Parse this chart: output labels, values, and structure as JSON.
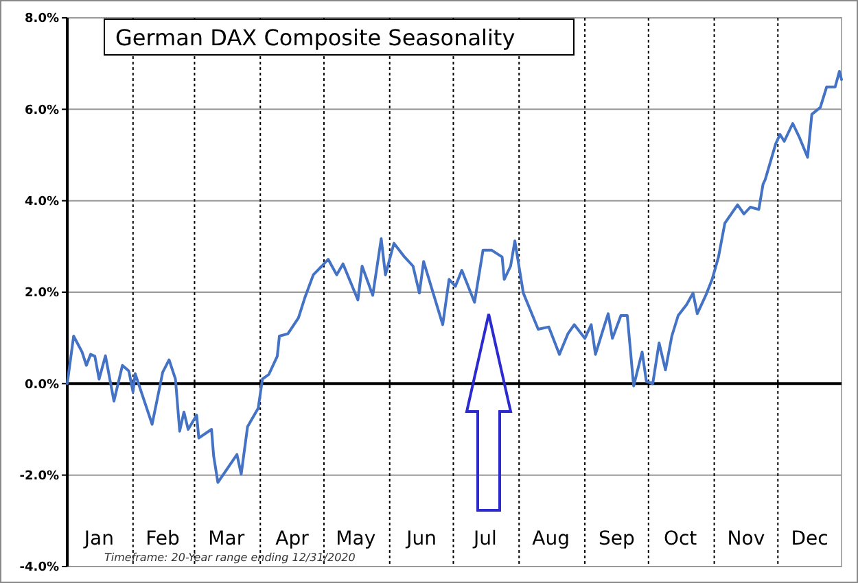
{
  "chart_data": {
    "type": "line",
    "title": "German DAX Composite Seasonality",
    "annotations": [
      "Timeframe: 20-Year range ending 12/31/2020"
    ],
    "xlim": [
      "--01-01",
      "--12-31"
    ],
    "xticks": [
      {
        "value": "--01-16",
        "label": "Jan"
      },
      {
        "value": "--02-15",
        "label": "Feb"
      },
      {
        "value": "--03-16",
        "label": "Mar"
      },
      {
        "value": "--04-16",
        "label": "Apr"
      },
      {
        "value": "--05-16",
        "label": "May"
      },
      {
        "value": "--06-16",
        "label": "Jun"
      },
      {
        "value": "--07-16",
        "label": "Jul"
      },
      {
        "value": "--08-16",
        "label": "Aug"
      },
      {
        "value": "--09-16",
        "label": "Sep"
      },
      {
        "value": "--10-16",
        "label": "Oct"
      },
      {
        "value": "--11-16",
        "label": "Nov"
      },
      {
        "value": "--12-16",
        "label": "Dec"
      },
      {
        "value": "--02-01",
        "label": null
      },
      {
        "value": "--03-01",
        "label": null
      },
      {
        "value": "--04-01",
        "label": null
      },
      {
        "value": "--05-01",
        "label": null
      },
      {
        "value": "--06-01",
        "label": null
      },
      {
        "value": "--07-01",
        "label": null
      },
      {
        "value": "--08-01",
        "label": null
      },
      {
        "value": "--09-01",
        "label": null
      },
      {
        "value": "--10-01",
        "label": null
      },
      {
        "value": "--11-01",
        "label": null
      },
      {
        "value": "--12-01",
        "label": null
      }
    ],
    "ylim": [
      -4,
      8
    ],
    "yticks": [
      {
        "value": -4,
        "label": "-4.0%"
      },
      {
        "value": -2,
        "label": "-2.0%"
      },
      {
        "value": 0,
        "label": "0.0%"
      },
      {
        "value": 2,
        "label": "2.0%"
      },
      {
        "value": 4,
        "label": "4.0%"
      },
      {
        "value": 6,
        "label": "6.0%"
      },
      {
        "value": 8,
        "label": "8.0%"
      }
    ],
    "grid": true,
    "line_style": "solid",
    "marker": "none",
    "series": [
      {
        "color": "#4472c4",
        "x": [
          "--01-01",
          "--01-04",
          "--01-08",
          "--01-10",
          "--01-12",
          "--01-14",
          "--01-16",
          "--01-19",
          "--01-23",
          "--01-27",
          "--01-30",
          "--02-01",
          "--02-02",
          "--02-10",
          "--02-15",
          "--02-18",
          "--02-21",
          "--02-23",
          "--02-25",
          "--02-27",
          "--03-02",
          "--03-03",
          "--03-09",
          "--03-10",
          "--03-12",
          "--03-21",
          "--03-23",
          "--03-26",
          "--03-31",
          "--04-02",
          "--04-05",
          "--04-09",
          "--04-10",
          "--04-14",
          "--04-19",
          "--04-22",
          "--04-26",
          "--04-30",
          "--05-03",
          "--05-07",
          "--05-10",
          "--05-17",
          "--05-19",
          "--05-24",
          "--05-28",
          "--05-30",
          "--06-03",
          "--06-08",
          "--06-12",
          "--06-15",
          "--06-17",
          "--06-26",
          "--06-29",
          "--07-02",
          "--07-05",
          "--07-11",
          "--07-15",
          "--07-19",
          "--07-24",
          "--07-25",
          "--07-28",
          "--07-30",
          "--08-03",
          "--08-10",
          "--08-15",
          "--08-20",
          "--08-24",
          "--08-27",
          "--09-01",
          "--09-04",
          "--09-06",
          "--09-10",
          "--09-12",
          "--09-14",
          "--09-18",
          "--09-21",
          "--09-24",
          "--09-28",
          "--09-30",
          "--10-03",
          "--10-06",
          "--10-09",
          "--10-12",
          "--10-15",
          "--10-19",
          "--10-22",
          "--10-24",
          "--10-28",
          "--10-31",
          "--11-03",
          "--11-06",
          "--11-12",
          "--11-15",
          "--11-18",
          "--11-22",
          "--11-24",
          "--11-25",
          "--11-30",
          "--12-02",
          "--12-04",
          "--12-08",
          "--12-11",
          "--12-15",
          "--12-17",
          "--12-21",
          "--12-24",
          "--12-28",
          "--12-30",
          "--12-31"
        ],
        "values": [
          0.0,
          1.04,
          0.69,
          0.4,
          0.64,
          0.6,
          0.1,
          0.61,
          -0.38,
          0.4,
          0.28,
          -0.18,
          0.22,
          -0.89,
          0.25,
          0.52,
          0.1,
          -1.04,
          -0.62,
          -1.0,
          -0.69,
          -1.19,
          -1.0,
          -1.58,
          -2.16,
          -1.55,
          -1.98,
          -0.94,
          -0.54,
          0.1,
          0.2,
          0.6,
          1.04,
          1.09,
          1.44,
          1.88,
          2.38,
          2.57,
          2.72,
          2.38,
          2.62,
          1.83,
          2.57,
          1.93,
          3.17,
          2.38,
          3.07,
          2.77,
          2.57,
          1.98,
          2.67,
          1.29,
          2.28,
          2.13,
          2.48,
          1.78,
          2.92,
          2.92,
          2.77,
          2.28,
          2.57,
          3.12,
          1.98,
          1.19,
          1.24,
          0.64,
          1.09,
          1.29,
          0.99,
          1.29,
          0.64,
          1.24,
          1.53,
          0.99,
          1.49,
          1.49,
          -0.05,
          0.69,
          0.05,
          0.0,
          0.89,
          0.3,
          1.04,
          1.49,
          1.73,
          1.98,
          1.53,
          1.93,
          2.28,
          2.77,
          3.51,
          3.91,
          3.71,
          3.86,
          3.81,
          4.36,
          4.46,
          5.25,
          5.45,
          5.3,
          5.69,
          5.4,
          4.95,
          5.89,
          6.04,
          6.49,
          6.49,
          6.83,
          6.65
        ]
      }
    ]
  }
}
